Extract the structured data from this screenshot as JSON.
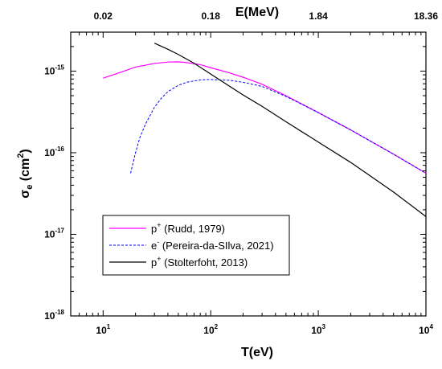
{
  "chart_data": {
    "type": "line",
    "xlabel": "T(eV)",
    "ylabel_main": "σ",
    "ylabel_sub": "e",
    "ylabel_unit": " (cm",
    "ylabel_unit_sup": "2",
    "ylabel_close": ")",
    "top_axis_label": "E(MeV)",
    "top_ticks": [
      {
        "x": 10,
        "label": "0.02"
      },
      {
        "x": 100,
        "label": "0.18"
      },
      {
        "x": 1000,
        "label": "1.84"
      },
      {
        "x": 10000,
        "label": "18.36"
      }
    ],
    "x_scale": "log",
    "y_scale": "log",
    "xlim": [
      5,
      10000
    ],
    "ylim": [
      1e-18,
      3e-15
    ],
    "x_ticks": [
      {
        "value": 10,
        "base": "10",
        "exp": "1"
      },
      {
        "value": 100,
        "base": "10",
        "exp": "2"
      },
      {
        "value": 1000,
        "base": "10",
        "exp": "3"
      },
      {
        "value": 10000,
        "base": "10",
        "exp": "4"
      }
    ],
    "y_ticks": [
      {
        "value": 1e-15,
        "base": "10",
        "exp": "-15"
      },
      {
        "value": 1e-16,
        "base": "10",
        "exp": "-16"
      },
      {
        "value": 1e-17,
        "base": "10",
        "exp": "-17"
      },
      {
        "value": 1e-18,
        "base": "10",
        "exp": "-18"
      }
    ],
    "grid": false,
    "legend_position": "bottom-left",
    "series": [
      {
        "name": "Rudd, 1979",
        "legend_particle": "p",
        "legend_charge": "+",
        "legend_text": " (Rudd, 1979)",
        "color": "#ff00ff",
        "dash": "solid",
        "x": [
          10,
          15,
          20,
          30,
          40,
          50,
          60,
          80,
          100,
          150,
          200,
          300,
          500,
          1000,
          2000,
          5000,
          10000
        ],
        "y": [
          8.2e-16,
          9.8e-16,
          1.12e-15,
          1.24e-15,
          1.29e-15,
          1.3e-15,
          1.27e-15,
          1.2e-15,
          1.1e-15,
          9.5e-16,
          8.4e-16,
          6.9e-16,
          5e-16,
          3.1e-16,
          1.9e-16,
          9.6e-17,
          5.6e-17
        ]
      },
      {
        "name": "Pereira-da-SIlva, 2021",
        "legend_particle": "e",
        "legend_charge": "-",
        "legend_text": " (Pereira-da-SIlva, 2021)",
        "color": "#0000ff",
        "dash": "dashed",
        "x": [
          18,
          20,
          22,
          25,
          30,
          35,
          40,
          50,
          60,
          80,
          100,
          150,
          200,
          300,
          500,
          1000,
          2000,
          5000,
          10000
        ],
        "y": [
          5.6e-17,
          1e-16,
          1.55e-16,
          2.3e-16,
          3.6e-16,
          4.7e-16,
          5.6e-16,
          6.7e-16,
          7.3e-16,
          7.8e-16,
          7.9e-16,
          7.7e-16,
          7.3e-16,
          6.5e-16,
          4.9e-16,
          3.1e-16,
          1.9e-16,
          9.6e-17,
          5.6e-17
        ]
      },
      {
        "name": "Stolterfoht, 2013",
        "legend_particle": "p",
        "legend_charge": "+",
        "legend_text": " (Stolterfoht, 2013)",
        "color": "#000000",
        "dash": "solid",
        "x": [
          30,
          40,
          50,
          70,
          100,
          150,
          200,
          300,
          500,
          1000,
          2000,
          5000,
          10000
        ],
        "y": [
          2.2e-15,
          1.85e-15,
          1.6e-15,
          1.25e-15,
          9.2e-16,
          6.5e-16,
          5.1e-16,
          3.7e-16,
          2.4e-16,
          1.35e-16,
          7.6e-17,
          3.3e-17,
          1.65e-17
        ]
      }
    ]
  }
}
